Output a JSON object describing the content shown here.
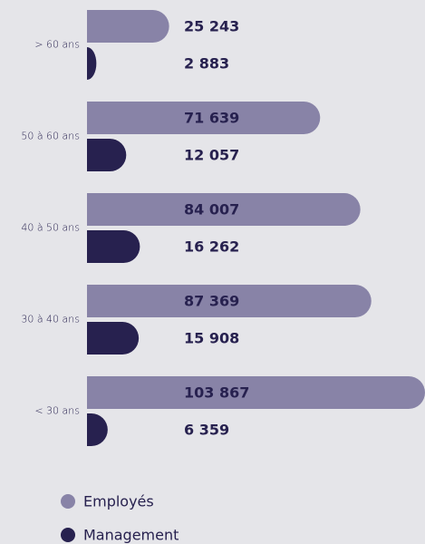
{
  "chart_data": {
    "type": "barh",
    "categories": [
      "> 60 ans",
      "50 à 60 ans",
      "40 à 50 ans",
      "30 à 40 ans",
      "< 30 ans"
    ],
    "series": [
      {
        "name": "Employés",
        "color": "#8883a7",
        "values": [
          25243,
          71639,
          84007,
          87369,
          103867
        ],
        "value_labels": [
          "25 243",
          "71 639",
          "84 007",
          "87 369",
          "103 867"
        ]
      },
      {
        "name": "Management",
        "color": "#27214f",
        "values": [
          2883,
          12057,
          16262,
          15908,
          6359
        ],
        "value_labels": [
          "2 883",
          "12 057",
          "16 262",
          "15 908",
          "6 359"
        ]
      }
    ],
    "legend": "bottom-left"
  }
}
